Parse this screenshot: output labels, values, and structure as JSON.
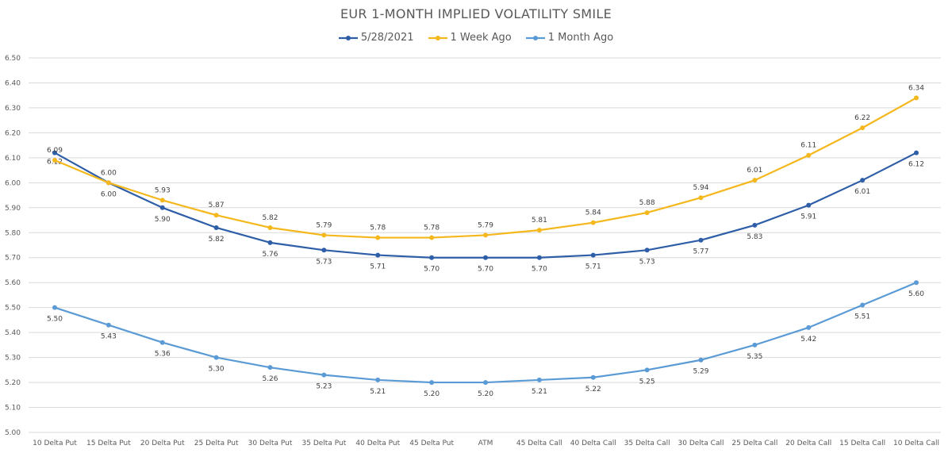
{
  "chart_data": {
    "type": "line",
    "title": "EUR 1-MONTH IMPLIED VOLATILITY SMILE",
    "xlabel": "",
    "ylabel": "",
    "ylim": [
      5.0,
      6.5
    ],
    "y_ticks": [
      "5.00",
      "5.10",
      "5.20",
      "5.30",
      "5.40",
      "5.50",
      "5.60",
      "5.70",
      "5.80",
      "5.90",
      "6.00",
      "6.10",
      "6.20",
      "6.30",
      "6.40",
      "6.50"
    ],
    "grid": true,
    "legend_position": "top",
    "categories": [
      "10 Delta Put",
      "15 Delta Put",
      "20 Delta Put",
      "25 Delta Put",
      "30 Delta Put",
      "35 Delta Put",
      "40 Delta Put",
      "45 Delta Put",
      "ATM",
      "45 Delta Call",
      "40 Delta Call",
      "35 Delta Call",
      "30 Delta Call",
      "25 Delta Call",
      "20 Delta Call",
      "15 Delta Call",
      "10 Delta Call"
    ],
    "series": [
      {
        "name": "5/28/2021",
        "color": "#2e5ea7",
        "values": [
          6.12,
          6.0,
          5.9,
          5.82,
          5.76,
          5.73,
          5.71,
          5.7,
          5.7,
          5.7,
          5.71,
          5.73,
          5.77,
          5.83,
          5.91,
          6.01,
          6.12
        ],
        "labels": [
          "6.12",
          "6.00",
          "5.90",
          "5.82",
          "5.76",
          "5.73",
          "5.71",
          "5.70",
          "5.70",
          "5.70",
          "5.71",
          "5.73",
          "5.77",
          "5.83",
          "5.91",
          "6.01",
          "6.12"
        ],
        "label_position": "below"
      },
      {
        "name": "1 Week Ago",
        "color": "#f4b71c",
        "values": [
          6.09,
          6.0,
          5.93,
          5.87,
          5.82,
          5.79,
          5.78,
          5.78,
          5.79,
          5.81,
          5.84,
          5.88,
          5.94,
          6.01,
          6.11,
          6.22,
          6.34
        ],
        "labels": [
          "6.09",
          "6.00",
          "5.93",
          "5.87",
          "5.82",
          "5.79",
          "5.78",
          "5.78",
          "5.79",
          "5.81",
          "5.84",
          "5.88",
          "5.94",
          "6.01",
          "6.11",
          "6.22",
          "6.34"
        ],
        "label_position": "above"
      },
      {
        "name": "1 Month Ago",
        "color": "#5b9bd5",
        "values": [
          5.5,
          5.43,
          5.36,
          5.3,
          5.26,
          5.23,
          5.21,
          5.2,
          5.2,
          5.21,
          5.22,
          5.25,
          5.29,
          5.35,
          5.42,
          5.51,
          5.6
        ],
        "labels": [
          "5.50",
          "5.43",
          "5.36",
          "5.30",
          "5.26",
          "5.23",
          "5.21",
          "5.20",
          "5.20",
          "5.21",
          "5.22",
          "5.25",
          "5.29",
          "5.35",
          "5.42",
          "5.51",
          "5.60"
        ],
        "label_position": "below"
      }
    ]
  }
}
